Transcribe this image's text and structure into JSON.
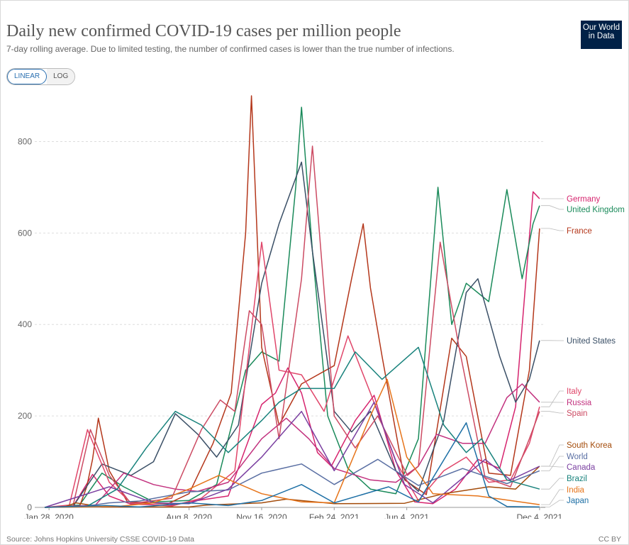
{
  "header": {
    "title": "Daily new confirmed COVID-19 cases per million people",
    "subtitle": "7-day rolling average. Due to limited testing, the number of confirmed cases is lower than the true number of infections.",
    "logo_line1": "Our World",
    "logo_line2": "in Data"
  },
  "controls": {
    "linear_label": "LINEAR",
    "log_label": "LOG",
    "selected": "LINEAR"
  },
  "footer": {
    "source": "Source: Johns Hopkins University CSSE COVID-19 Data",
    "license": "CC BY"
  },
  "chart_data": {
    "type": "line",
    "title": "Daily new confirmed COVID-19 cases per million people",
    "xlabel": "",
    "ylabel": "",
    "x_ticks": [
      "Jan 28, 2020",
      "Aug 8, 2020",
      "Nov 16, 2020",
      "Feb 24, 2021",
      "Jun 4, 2021",
      "Dec 4, 2021"
    ],
    "y_ticks": [
      0,
      200,
      400,
      600,
      800
    ],
    "ylim": [
      0,
      900
    ],
    "xlim": [
      "2020-01-22",
      "2021-12-10"
    ],
    "grid": "horizontal",
    "legend": "right",
    "series": [
      {
        "name": "Germany",
        "color": "#d6246e",
        "points": [
          [
            "2020-01-22",
            0
          ],
          [
            "2020-03-01",
            2
          ],
          [
            "2020-03-28",
            72
          ],
          [
            "2020-04-20",
            25
          ],
          [
            "2020-05-20",
            7
          ],
          [
            "2020-07-15",
            5
          ],
          [
            "2020-08-15",
            14
          ],
          [
            "2020-10-01",
            25
          ],
          [
            "2020-10-25",
            130
          ],
          [
            "2020-11-16",
            225
          ],
          [
            "2020-12-05",
            250
          ],
          [
            "2020-12-22",
            305
          ],
          [
            "2021-01-10",
            250
          ],
          [
            "2021-02-01",
            120
          ],
          [
            "2021-02-20",
            90
          ],
          [
            "2021-03-25",
            190
          ],
          [
            "2021-04-20",
            245
          ],
          [
            "2021-05-20",
            80
          ],
          [
            "2021-06-15",
            12
          ],
          [
            "2021-07-10",
            8
          ],
          [
            "2021-08-10",
            40
          ],
          [
            "2021-09-10",
            105
          ],
          [
            "2021-10-10",
            85
          ],
          [
            "2021-11-01",
            220
          ],
          [
            "2021-11-25",
            690
          ],
          [
            "2021-12-04",
            675
          ]
        ]
      },
      {
        "name": "United Kingdom",
        "color": "#1a8a5a",
        "points": [
          [
            "2020-01-22",
            0
          ],
          [
            "2020-03-10",
            5
          ],
          [
            "2020-04-10",
            75
          ],
          [
            "2020-05-10",
            45
          ],
          [
            "2020-06-20",
            12
          ],
          [
            "2020-08-08",
            15
          ],
          [
            "2020-09-15",
            50
          ],
          [
            "2020-10-25",
            300
          ],
          [
            "2020-11-16",
            340
          ],
          [
            "2020-12-10",
            320
          ],
          [
            "2021-01-02",
            700
          ],
          [
            "2021-01-10",
            875
          ],
          [
            "2021-01-25",
            560
          ],
          [
            "2021-02-15",
            200
          ],
          [
            "2021-03-15",
            85
          ],
          [
            "2021-04-15",
            40
          ],
          [
            "2021-05-20",
            30
          ],
          [
            "2021-06-20",
            150
          ],
          [
            "2021-07-17",
            700
          ],
          [
            "2021-08-05",
            400
          ],
          [
            "2021-08-25",
            490
          ],
          [
            "2021-09-25",
            450
          ],
          [
            "2021-10-20",
            695
          ],
          [
            "2021-11-10",
            500
          ],
          [
            "2021-11-25",
            620
          ],
          [
            "2021-12-04",
            660
          ]
        ]
      },
      {
        "name": "France",
        "color": "#b4371b",
        "points": [
          [
            "2020-01-22",
            0
          ],
          [
            "2020-03-10",
            2
          ],
          [
            "2020-03-20",
            45
          ],
          [
            "2020-03-28",
            105
          ],
          [
            "2020-04-05",
            195
          ],
          [
            "2020-04-20",
            80
          ],
          [
            "2020-05-15",
            12
          ],
          [
            "2020-07-10",
            8
          ],
          [
            "2020-08-08",
            30
          ],
          [
            "2020-09-10",
            140
          ],
          [
            "2020-10-05",
            250
          ],
          [
            "2020-10-25",
            600
          ],
          [
            "2020-11-02",
            900
          ],
          [
            "2020-11-16",
            350
          ],
          [
            "2020-12-10",
            180
          ],
          [
            "2021-01-10",
            270
          ],
          [
            "2021-02-24",
            310
          ],
          [
            "2021-03-20",
            500
          ],
          [
            "2021-04-05",
            620
          ],
          [
            "2021-04-15",
            480
          ],
          [
            "2021-05-01",
            330
          ],
          [
            "2021-06-01",
            60
          ],
          [
            "2021-07-01",
            28
          ],
          [
            "2021-08-05",
            370
          ],
          [
            "2021-08-25",
            330
          ],
          [
            "2021-09-25",
            75
          ],
          [
            "2021-10-25",
            70
          ],
          [
            "2021-11-20",
            300
          ],
          [
            "2021-12-04",
            610
          ]
        ]
      },
      {
        "name": "United States",
        "color": "#3a4f66",
        "points": [
          [
            "2020-01-22",
            0
          ],
          [
            "2020-03-01",
            2
          ],
          [
            "2020-04-10",
            95
          ],
          [
            "2020-05-20",
            70
          ],
          [
            "2020-06-20",
            100
          ],
          [
            "2020-07-20",
            205
          ],
          [
            "2020-08-20",
            160
          ],
          [
            "2020-09-15",
            110
          ],
          [
            "2020-10-15",
            180
          ],
          [
            "2020-11-16",
            490
          ],
          [
            "2020-12-10",
            620
          ],
          [
            "2021-01-10",
            755
          ],
          [
            "2021-01-25",
            560
          ],
          [
            "2021-02-24",
            210
          ],
          [
            "2021-03-20",
            165
          ],
          [
            "2021-04-15",
            210
          ],
          [
            "2021-05-20",
            80
          ],
          [
            "2021-06-20",
            35
          ],
          [
            "2021-07-25",
            190
          ],
          [
            "2021-08-25",
            470
          ],
          [
            "2021-09-10",
            500
          ],
          [
            "2021-10-10",
            330
          ],
          [
            "2021-11-01",
            230
          ],
          [
            "2021-11-20",
            280
          ],
          [
            "2021-12-04",
            365
          ]
        ]
      },
      {
        "name": "Italy",
        "color": "#e0466a",
        "points": [
          [
            "2020-01-22",
            0
          ],
          [
            "2020-02-25",
            5
          ],
          [
            "2020-03-21",
            170
          ],
          [
            "2020-04-20",
            55
          ],
          [
            "2020-05-20",
            10
          ],
          [
            "2020-07-15",
            3
          ],
          [
            "2020-08-25",
            20
          ],
          [
            "2020-10-10",
            80
          ],
          [
            "2020-11-16",
            580
          ],
          [
            "2020-12-10",
            300
          ],
          [
            "2021-01-10",
            290
          ],
          [
            "2021-02-10",
            210
          ],
          [
            "2021-03-15",
            375
          ],
          [
            "2021-04-15",
            250
          ],
          [
            "2021-05-20",
            100
          ],
          [
            "2021-06-20",
            15
          ],
          [
            "2021-07-25",
            80
          ],
          [
            "2021-08-25",
            110
          ],
          [
            "2021-09-25",
            55
          ],
          [
            "2021-10-25",
            60
          ],
          [
            "2021-11-20",
            140
          ],
          [
            "2021-12-04",
            220
          ]
        ]
      },
      {
        "name": "Russia",
        "color": "#c2317e",
        "points": [
          [
            "2020-01-22",
            0
          ],
          [
            "2020-04-01",
            5
          ],
          [
            "2020-05-10",
            75
          ],
          [
            "2020-06-20",
            50
          ],
          [
            "2020-07-20",
            40
          ],
          [
            "2020-08-20",
            35
          ],
          [
            "2020-10-01",
            55
          ],
          [
            "2020-11-16",
            150
          ],
          [
            "2020-12-20",
            195
          ],
          [
            "2021-01-20",
            150
          ],
          [
            "2021-02-24",
            85
          ],
          [
            "2021-04-15",
            60
          ],
          [
            "2021-05-20",
            55
          ],
          [
            "2021-06-20",
            90
          ],
          [
            "2021-07-15",
            160
          ],
          [
            "2021-08-20",
            140
          ],
          [
            "2021-09-20",
            140
          ],
          [
            "2021-10-20",
            240
          ],
          [
            "2021-11-10",
            270
          ],
          [
            "2021-12-04",
            230
          ]
        ]
      },
      {
        "name": "Spain",
        "color": "#cc4b63",
        "points": [
          [
            "2020-01-22",
            0
          ],
          [
            "2020-03-01",
            3
          ],
          [
            "2020-03-25",
            170
          ],
          [
            "2020-04-20",
            70
          ],
          [
            "2020-05-20",
            8
          ],
          [
            "2020-07-15",
            20
          ],
          [
            "2020-08-25",
            170
          ],
          [
            "2020-09-20",
            235
          ],
          [
            "2020-10-10",
            210
          ],
          [
            "2020-10-30",
            430
          ],
          [
            "2020-11-16",
            400
          ],
          [
            "2020-12-10",
            150
          ],
          [
            "2021-01-10",
            500
          ],
          [
            "2021-01-25",
            790
          ],
          [
            "2021-02-24",
            200
          ],
          [
            "2021-03-25",
            130
          ],
          [
            "2021-04-25",
            200
          ],
          [
            "2021-06-05",
            70
          ],
          [
            "2021-06-20",
            90
          ],
          [
            "2021-07-20",
            580
          ],
          [
            "2021-08-15",
            350
          ],
          [
            "2021-09-20",
            65
          ],
          [
            "2021-10-25",
            45
          ],
          [
            "2021-11-20",
            150
          ],
          [
            "2021-12-04",
            210
          ]
        ]
      },
      {
        "name": "South Korea",
        "color": "#a34b0a",
        "points": [
          [
            "2020-01-22",
            0
          ],
          [
            "2020-02-20",
            2
          ],
          [
            "2020-03-05",
            10
          ],
          [
            "2020-04-10",
            1
          ],
          [
            "2020-08-08",
            1
          ],
          [
            "2020-09-01",
            5
          ],
          [
            "2020-11-16",
            10
          ],
          [
            "2020-12-20",
            18
          ],
          [
            "2021-02-24",
            8
          ],
          [
            "2021-06-01",
            9
          ],
          [
            "2021-07-25",
            30
          ],
          [
            "2021-09-25",
            45
          ],
          [
            "2021-11-01",
            40
          ],
          [
            "2021-12-04",
            90
          ]
        ]
      },
      {
        "name": "World",
        "color": "#5a6fa3",
        "points": [
          [
            "2020-01-22",
            0
          ],
          [
            "2020-03-20",
            3
          ],
          [
            "2020-04-20",
            10
          ],
          [
            "2020-06-01",
            14
          ],
          [
            "2020-08-08",
            34
          ],
          [
            "2020-10-01",
            38
          ],
          [
            "2020-11-16",
            75
          ],
          [
            "2021-01-10",
            95
          ],
          [
            "2021-02-24",
            50
          ],
          [
            "2021-04-25",
            105
          ],
          [
            "2021-06-20",
            48
          ],
          [
            "2021-08-20",
            85
          ],
          [
            "2021-10-20",
            52
          ],
          [
            "2021-12-04",
            80
          ]
        ]
      },
      {
        "name": "Canada",
        "color": "#7a3fa0",
        "points": [
          [
            "2020-01-22",
            0
          ],
          [
            "2020-04-20",
            45
          ],
          [
            "2020-06-20",
            10
          ],
          [
            "2020-08-08",
            8
          ],
          [
            "2020-10-01",
            40
          ],
          [
            "2020-11-16",
            110
          ],
          [
            "2021-01-10",
            210
          ],
          [
            "2021-02-24",
            80
          ],
          [
            "2021-04-20",
            230
          ],
          [
            "2021-06-01",
            50
          ],
          [
            "2021-07-10",
            10
          ],
          [
            "2021-09-20",
            105
          ],
          [
            "2021-10-25",
            60
          ],
          [
            "2021-12-04",
            90
          ]
        ]
      },
      {
        "name": "Brazil",
        "color": "#18827c",
        "points": [
          [
            "2020-01-22",
            0
          ],
          [
            "2020-03-20",
            2
          ],
          [
            "2020-05-01",
            40
          ],
          [
            "2020-06-10",
            130
          ],
          [
            "2020-07-20",
            210
          ],
          [
            "2020-08-25",
            180
          ],
          [
            "2020-10-01",
            120
          ],
          [
            "2020-11-16",
            190
          ],
          [
            "2020-12-10",
            230
          ],
          [
            "2021-01-10",
            260
          ],
          [
            "2021-02-24",
            260
          ],
          [
            "2021-03-25",
            340
          ],
          [
            "2021-05-01",
            280
          ],
          [
            "2021-06-20",
            350
          ],
          [
            "2021-07-25",
            180
          ],
          [
            "2021-08-25",
            120
          ],
          [
            "2021-09-15",
            150
          ],
          [
            "2021-10-20",
            60
          ],
          [
            "2021-12-04",
            40
          ]
        ]
      },
      {
        "name": "India",
        "color": "#e6741a",
        "points": [
          [
            "2020-01-22",
            0
          ],
          [
            "2020-05-01",
            2
          ],
          [
            "2020-06-20",
            10
          ],
          [
            "2020-08-08",
            40
          ],
          [
            "2020-09-18",
            70
          ],
          [
            "2020-11-16",
            30
          ],
          [
            "2021-01-10",
            12
          ],
          [
            "2021-02-24",
            10
          ],
          [
            "2021-04-15",
            200
          ],
          [
            "2021-05-08",
            280
          ],
          [
            "2021-06-04",
            110
          ],
          [
            "2021-07-10",
            30
          ],
          [
            "2021-09-10",
            25
          ],
          [
            "2021-12-04",
            6
          ]
        ]
      },
      {
        "name": "Japan",
        "color": "#1d6fa5",
        "points": [
          [
            "2020-01-22",
            0
          ],
          [
            "2020-04-15",
            4
          ],
          [
            "2020-06-01",
            1
          ],
          [
            "2020-08-08",
            10
          ],
          [
            "2020-10-01",
            4
          ],
          [
            "2020-11-16",
            15
          ],
          [
            "2021-01-10",
            50
          ],
          [
            "2021-02-24",
            10
          ],
          [
            "2021-05-10",
            45
          ],
          [
            "2021-06-20",
            12
          ],
          [
            "2021-08-25",
            185
          ],
          [
            "2021-09-25",
            25
          ],
          [
            "2021-10-20",
            2
          ],
          [
            "2021-12-04",
            1
          ]
        ]
      }
    ]
  }
}
